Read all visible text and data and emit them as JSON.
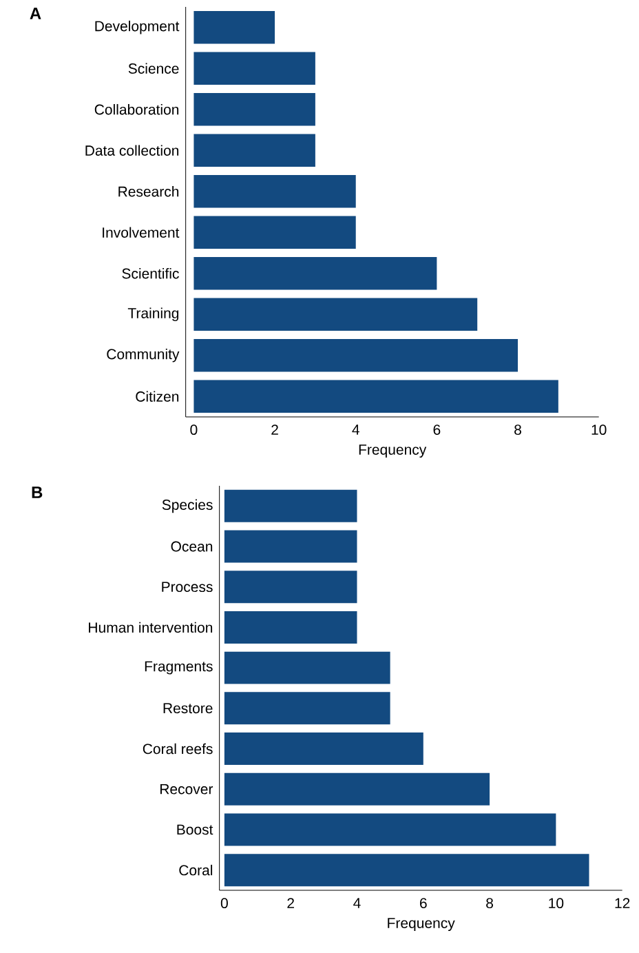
{
  "chart_data": [
    {
      "type": "bar",
      "orientation": "horizontal",
      "title": "A",
      "xlabel": "Frequency",
      "categories": [
        "Development",
        "Science",
        "Collaboration",
        "Data collection",
        "Research",
        "Involvement",
        "Scientific",
        "Training",
        "Community",
        "Citizen"
      ],
      "values": [
        2,
        3,
        3,
        3,
        4,
        4,
        6,
        7,
        8,
        9
      ],
      "color": "#134a80",
      "xlim": [
        -0.2,
        10
      ],
      "xticks": [
        0,
        2,
        4,
        6,
        8,
        10
      ]
    },
    {
      "type": "bar",
      "orientation": "horizontal",
      "title": "B",
      "xlabel": "Frequency",
      "categories": [
        "Species",
        "Ocean",
        "Process",
        "Human intervention",
        "Fragments",
        "Restore",
        "Coral reefs",
        "Recover",
        "Boost",
        "Coral"
      ],
      "values": [
        4,
        4,
        4,
        4,
        5,
        5,
        6,
        8,
        10,
        11
      ],
      "color": "#134a80",
      "xlim": [
        -0.15,
        12
      ],
      "xticks": [
        0,
        2,
        4,
        6,
        8,
        10,
        12
      ]
    }
  ]
}
